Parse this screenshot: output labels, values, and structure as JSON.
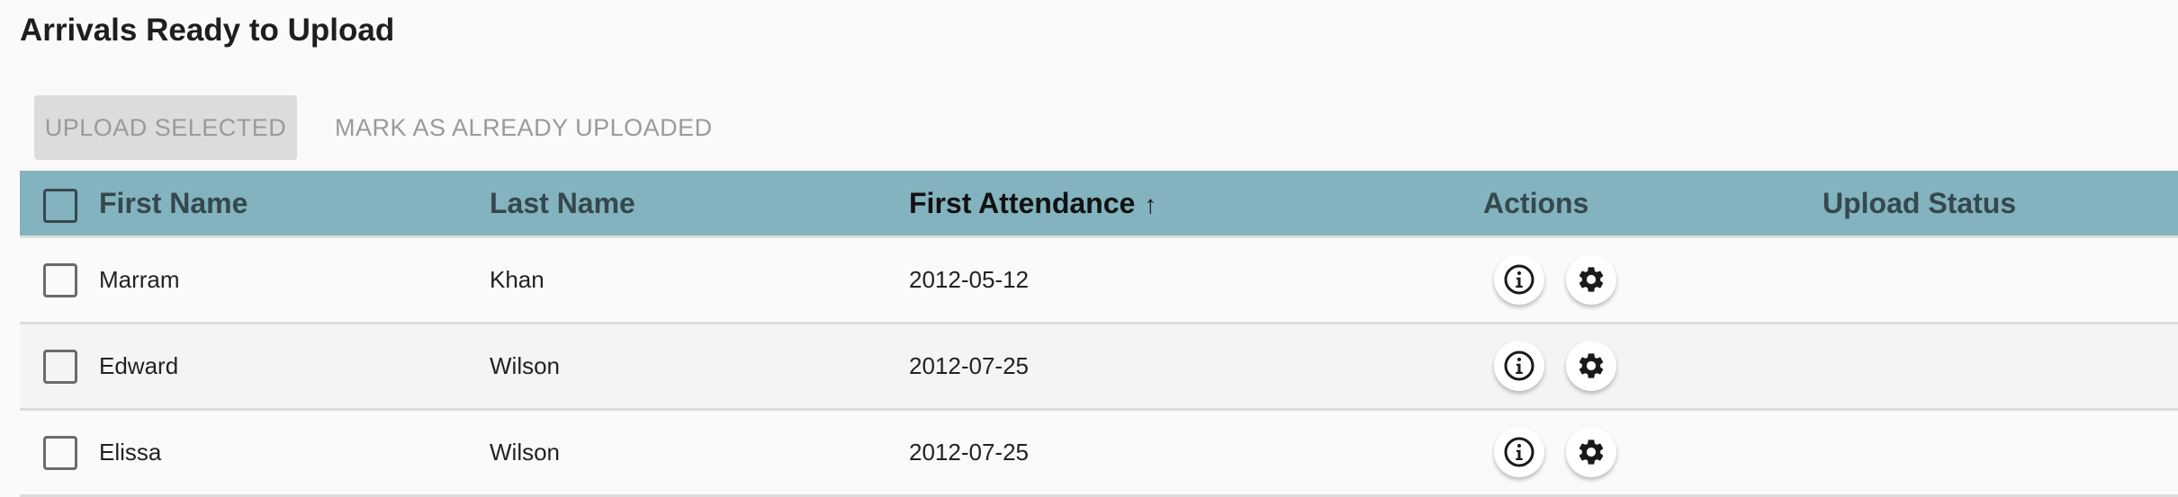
{
  "title": "Arrivals Ready to Upload",
  "toolbar": {
    "upload_selected": "UPLOAD SELECTED",
    "mark_uploaded": "MARK AS ALREADY UPLOADED"
  },
  "table": {
    "headers": {
      "first_name": "First Name",
      "last_name": "Last Name",
      "first_attendance": "First Attendance",
      "actions": "Actions",
      "upload_status": "Upload Status"
    },
    "sort": {
      "column": "first_attendance",
      "direction": "ascending",
      "icon": "arrow-up-icon",
      "glyph": "↑"
    },
    "rows": [
      {
        "first_name": "Marram",
        "last_name": "Khan",
        "first_attendance": "2012-05-12",
        "upload_status": ""
      },
      {
        "first_name": "Edward",
        "last_name": "Wilson",
        "first_attendance": "2012-07-25",
        "upload_status": ""
      },
      {
        "first_name": "Elissa",
        "last_name": "Wilson",
        "first_attendance": "2012-07-25",
        "upload_status": ""
      }
    ]
  },
  "colors": {
    "header_bg": "#82b3be",
    "header_text": "#35484d",
    "button_disabled_bg": "#dcdcdc"
  },
  "icons": {
    "info": "info-icon",
    "settings": "gear-icon"
  }
}
